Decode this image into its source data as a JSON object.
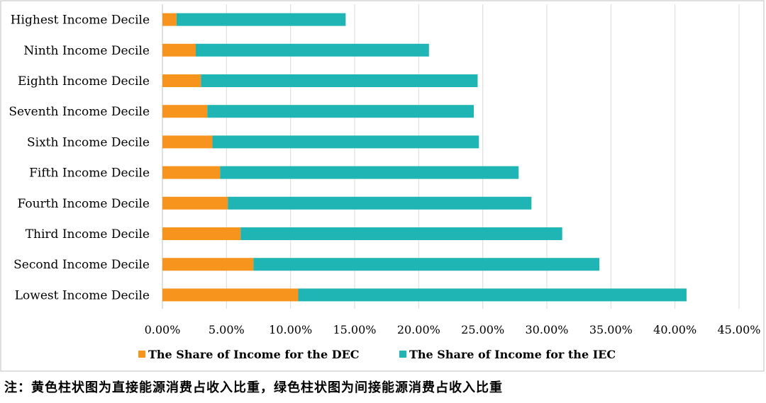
{
  "chart_data": {
    "type": "bar",
    "orientation": "horizontal",
    "stacked": true,
    "categories": [
      "Highest Income Decile",
      "Ninth Income Decile",
      "Eighth Income Decile",
      "Seventh Income Decile",
      "Sixth Income Decile",
      "Fifth Income Decile",
      "Fourth Income Decile",
      "Third Income Decile",
      "Second Income Decile",
      "Lowest Income Decile"
    ],
    "series": [
      {
        "name": "The Share of Income for the DEC",
        "color": "#F7941D",
        "values": [
          1.1,
          2.6,
          3.0,
          3.5,
          3.9,
          4.5,
          5.1,
          6.1,
          7.1,
          10.6
        ]
      },
      {
        "name": "The Share of Income for the IEC",
        "color": "#1FB5B5",
        "values": [
          13.2,
          18.2,
          21.6,
          20.8,
          20.8,
          23.3,
          23.7,
          25.1,
          27.0,
          30.3
        ]
      }
    ],
    "xlim": [
      0,
      45
    ],
    "xticks": [
      0,
      5,
      10,
      15,
      20,
      25,
      30,
      35,
      40,
      45
    ],
    "xtick_labels": [
      "0.00%",
      "5.00%",
      "10.00%",
      "15.00%",
      "20.00%",
      "25.00%",
      "30.00%",
      "35.00%",
      "40.00%",
      "45.00%"
    ],
    "grid": "vertical",
    "legend_position": "bottom",
    "title": "",
    "xlabel": "",
    "ylabel": ""
  },
  "note": "注：黄色柱状图为直接能源消费占收入比重，绿色柱状图为间接能源消费占收入比重",
  "colors": {
    "grid": "#D9D9D9",
    "frame": "#BFBFBF"
  }
}
